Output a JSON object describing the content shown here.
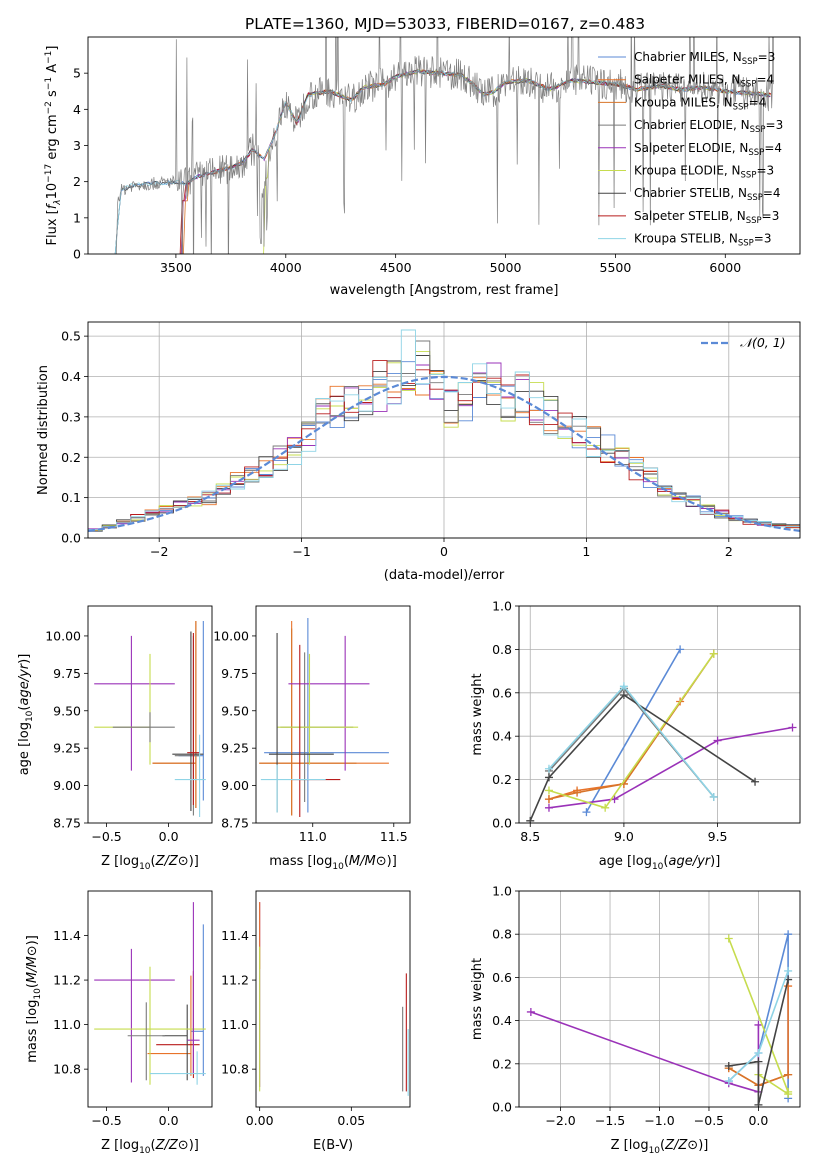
{
  "title": "PLATE=1360, MJD=53033, FIBERID=0167, z=0.483",
  "series_styles": [
    {
      "name": "Chabrier MILES, N$_{SSP}$=3",
      "label_main": "Chabrier MILES, N",
      "label_sub": "SSP",
      "label_end": "=3",
      "color": "#5b8ad6"
    },
    {
      "name": "Salpeter MILES, N$_{SSP}$=4",
      "label_main": "Salpeter MILES, N",
      "label_sub": "SSP",
      "label_end": "=4",
      "color": "#e8732a"
    },
    {
      "name": "Kroupa MILES, N$_{SSP}$=4",
      "label_main": "Kroupa MILES, N",
      "label_sub": "SSP",
      "label_end": "=4",
      "color": "#d8742a"
    },
    {
      "name": "Chabrier ELODIE, N$_{SSP}$=3",
      "label_main": "Chabrier ELODIE, N",
      "label_sub": "SSP",
      "label_end": "=3",
      "color": "#7a7a7a"
    },
    {
      "name": "Salpeter ELODIE, N$_{SSP}$=4",
      "label_main": "Salpeter ELODIE, N",
      "label_sub": "SSP",
      "label_end": "=4",
      "color": "#9a32b8"
    },
    {
      "name": "Kroupa ELODIE, N$_{SSP}$=3",
      "label_main": "Kroupa ELODIE, N",
      "label_sub": "SSP",
      "label_end": "=3",
      "color": "#c6dc4e"
    },
    {
      "name": "Chabrier STELIB, N$_{SSP}$=4",
      "label_main": "Chabrier STELIB, N",
      "label_sub": "SSP",
      "label_end": "=4",
      "color": "#444444"
    },
    {
      "name": "Salpeter STELIB, N$_{SSP}$=3",
      "label_main": "Salpeter STELIB, N",
      "label_sub": "SSP",
      "label_end": "=3",
      "color": "#b81c1c"
    },
    {
      "name": "Kroupa STELIB, N$_{SSP}$=3",
      "label_main": "Kroupa STELIB, N",
      "label_sub": "SSP",
      "label_end": "=3",
      "color": "#8fd4e6"
    }
  ],
  "chart_data": [
    {
      "id": "spectrum",
      "type": "line",
      "xlabel": "wavelength [Angstrom, rest frame]",
      "ylabel": "Flux [f_λ 10^-17 erg cm^-2 s^-1 A^-1]",
      "ylabel_parts": {
        "a": "Flux [",
        "b": "f",
        "c": "λ",
        "d": "10",
        "e": "−17",
        "f": " erg cm",
        "g": "−2",
        "h": " s",
        "i": "−1",
        "j": " A",
        "k": "−1",
        "l": "]"
      },
      "xlim": [
        3100,
        6340
      ],
      "ylim": [
        0,
        6
      ],
      "xticks": [
        3500,
        4000,
        4500,
        5000,
        5500,
        6000
      ],
      "yticks": [
        0,
        1,
        2,
        3,
        4,
        5
      ],
      "grid": false,
      "legend": "upper right",
      "continuum": [
        [
          3230,
          0
        ],
        [
          3235,
          1.5
        ],
        [
          3250,
          1.75
        ],
        [
          3300,
          1.9
        ],
        [
          3400,
          1.95
        ],
        [
          3500,
          2.0
        ],
        [
          3550,
          1.95
        ],
        [
          3600,
          2.15
        ],
        [
          3700,
          2.3
        ],
        [
          3800,
          2.5
        ],
        [
          3850,
          2.9
        ],
        [
          3900,
          2.6
        ],
        [
          3950,
          3.3
        ],
        [
          4000,
          4.2
        ],
        [
          4050,
          3.6
        ],
        [
          4100,
          4.4
        ],
        [
          4200,
          4.5
        ],
        [
          4300,
          4.25
        ],
        [
          4350,
          4.6
        ],
        [
          4450,
          4.7
        ],
        [
          4500,
          4.9
        ],
        [
          4600,
          5.05
        ],
        [
          4700,
          5.0
        ],
        [
          4800,
          4.95
        ],
        [
          4860,
          4.65
        ],
        [
          4900,
          4.4
        ],
        [
          4950,
          4.5
        ],
        [
          5000,
          4.75
        ],
        [
          5100,
          4.8
        ],
        [
          5200,
          4.55
        ],
        [
          5300,
          4.8
        ],
        [
          5400,
          4.75
        ],
        [
          5500,
          4.7
        ],
        [
          5600,
          4.55
        ],
        [
          5700,
          4.65
        ],
        [
          5800,
          4.55
        ],
        [
          5900,
          4.6
        ],
        [
          6000,
          4.5
        ],
        [
          6100,
          4.45
        ],
        [
          6200,
          4.4
        ]
      ]
    },
    {
      "id": "residuals",
      "type": "line",
      "xlabel": "(data-model)/error",
      "ylabel": "Normed distribution",
      "xlim": [
        -2.5,
        2.5
      ],
      "ylim": [
        0,
        0.535
      ],
      "xticks": [
        -2,
        -1,
        0,
        1,
        2
      ],
      "yticks": [
        0.0,
        0.1,
        0.2,
        0.3,
        0.4,
        0.5
      ],
      "grid": true,
      "legend": "upper right",
      "legend_label": "𝒩(0, 1)",
      "gaussian": {
        "mean": 0,
        "sigma": 1
      },
      "bin_width": 0.1,
      "histogram_approx": [
        0.02,
        0.03,
        0.04,
        0.05,
        0.06,
        0.07,
        0.08,
        0.09,
        0.1,
        0.12,
        0.14,
        0.16,
        0.18,
        0.2,
        0.22,
        0.25,
        0.3,
        0.32,
        0.33,
        0.34,
        0.38,
        0.4,
        0.44,
        0.42,
        0.37,
        0.33,
        0.35,
        0.39,
        0.37,
        0.35,
        0.36,
        0.33,
        0.3,
        0.27,
        0.26,
        0.24,
        0.22,
        0.19,
        0.17,
        0.15,
        0.12,
        0.1,
        0.09,
        0.07,
        0.06,
        0.05,
        0.04,
        0.035,
        0.03,
        0.03
      ]
    },
    {
      "id": "age-vs-Z",
      "type": "scatter",
      "xlabel": "Z [log10(Z/Z⊙)]",
      "ylabel": "age  [log10(age/yr)]",
      "xlim": [
        -0.65,
        0.35
      ],
      "ylim": [
        8.75,
        10.2
      ],
      "xticks": [
        -0.5,
        0.0
      ],
      "yticks": [
        8.75,
        9.0,
        9.25,
        9.5,
        9.75,
        10.0
      ],
      "grid": false,
      "points": [
        {
          "x": 0.28,
          "y": 9.2,
          "xerr": [
            0.2,
            0.0
          ],
          "yerr": [
            0.3,
            0.9
          ],
          "series": 0
        },
        {
          "x": 0.22,
          "y": 9.15,
          "xerr": [
            0.35,
            0.0
          ],
          "yerr": [
            0.3,
            0.95
          ],
          "series": 1
        },
        {
          "x": 0.22,
          "y": 9.15,
          "xerr": [
            0.35,
            0.0
          ],
          "yerr": [
            0.3,
            0.95
          ],
          "series": 2
        },
        {
          "x": 0.2,
          "y": 9.2,
          "xerr": [
            0.15,
            0.05
          ],
          "yerr": [
            0.4,
            0.8
          ],
          "series": 3
        },
        {
          "x": -0.3,
          "y": 9.68,
          "xerr": [
            0.3,
            0.35
          ],
          "yerr": [
            0.58,
            0.32
          ],
          "series": 4
        },
        {
          "x": -0.15,
          "y": 9.39,
          "xerr": [
            0.45,
            0.0
          ],
          "yerr": [
            0.25,
            0.49
          ],
          "series": 5
        },
        {
          "x": 0.18,
          "y": 9.21,
          "xerr": [
            0.15,
            0.1
          ],
          "yerr": [
            0.38,
            0.82
          ],
          "series": 6
        },
        {
          "x": 0.2,
          "y": 9.22,
          "xerr": [
            0.05,
            0.05
          ],
          "yerr": [
            0.35,
            0.8
          ],
          "series": 7
        },
        {
          "x": 0.25,
          "y": 9.04,
          "xerr": [
            0.2,
            0.05
          ],
          "yerr": [
            0.25,
            0.3
          ],
          "series": 8
        },
        {
          "x": -0.15,
          "y": 9.39,
          "xerr": [
            0.3,
            0.2
          ],
          "yerr": [
            0.1,
            0.1
          ],
          "series": 3
        }
      ]
    },
    {
      "id": "age-vs-mass",
      "type": "scatter",
      "xlabel": "mass [log10(M/M⊙)]",
      "ylabel": "",
      "xlim": [
        10.65,
        11.6
      ],
      "ylim": [
        8.75,
        10.2
      ],
      "xticks": [
        11.0,
        11.5
      ],
      "yticks": [
        8.75,
        9.0,
        9.25,
        9.5,
        9.75,
        10.0
      ],
      "grid": false,
      "points": [
        {
          "x": 10.97,
          "y": 9.22,
          "xerr": [
            0.27,
            0.5
          ],
          "yerr": [
            0.4,
            0.9
          ],
          "series": 0
        },
        {
          "x": 10.87,
          "y": 9.15,
          "xerr": [
            0.2,
            0.6
          ],
          "yerr": [
            0.35,
            0.95
          ],
          "series": 1
        },
        {
          "x": 10.87,
          "y": 9.15,
          "xerr": [
            0.2,
            0.4
          ],
          "yerr": [
            0.35,
            0.9
          ],
          "series": 2
        },
        {
          "x": 10.95,
          "y": 9.39,
          "xerr": [
            0.15,
            0.3
          ],
          "yerr": [
            0.5,
            0.5
          ],
          "series": 3
        },
        {
          "x": 11.2,
          "y": 9.68,
          "xerr": [
            0.35,
            0.15
          ],
          "yerr": [
            0.58,
            0.32
          ],
          "series": 4
        },
        {
          "x": 10.98,
          "y": 9.39,
          "xerr": [
            0.2,
            0.3
          ],
          "yerr": [
            0.25,
            0.49
          ],
          "series": 5
        },
        {
          "x": 10.78,
          "y": 9.21,
          "xerr": [
            0.05,
            0.35
          ],
          "yerr": [
            0.39,
            0.81
          ],
          "series": 6
        },
        {
          "x": 10.92,
          "y": 9.04,
          "xerr": [
            0.05,
            0.25
          ],
          "yerr": [
            0.25,
            0.9
          ],
          "series": 7
        },
        {
          "x": 10.78,
          "y": 9.04,
          "xerr": [
            0.1,
            0.3
          ],
          "yerr": [
            0.22,
            0.1
          ],
          "series": 8
        }
      ]
    },
    {
      "id": "mass-weight-vs-age",
      "type": "line",
      "xlabel": "age  [log10(age/yr)]",
      "ylabel": "mass weight",
      "xlim": [
        8.44,
        9.94
      ],
      "ylim": [
        0,
        1
      ],
      "xticks": [
        8.5,
        9.0,
        9.5
      ],
      "yticks": [
        0.0,
        0.2,
        0.4,
        0.6,
        0.8,
        1.0
      ],
      "grid": true,
      "series": [
        {
          "series": 0,
          "x": [
            8.8,
            9.3
          ],
          "y": [
            0.05,
            0.8
          ]
        },
        {
          "series": 1,
          "x": [
            8.6,
            8.75,
            9.0,
            9.3
          ],
          "y": [
            0.11,
            0.15,
            0.18,
            0.56
          ]
        },
        {
          "series": 2,
          "x": [
            8.6,
            8.75,
            9.0,
            9.48
          ],
          "y": [
            0.11,
            0.14,
            0.18,
            0.78
          ]
        },
        {
          "series": 3,
          "x": [
            8.6,
            9.0,
            9.48
          ],
          "y": [
            0.24,
            0.62,
            0.12
          ]
        },
        {
          "series": 4,
          "x": [
            8.6,
            8.95,
            9.5,
            9.9
          ],
          "y": [
            0.07,
            0.11,
            0.38,
            0.44
          ]
        },
        {
          "series": 5,
          "x": [
            8.6,
            8.9,
            9.48
          ],
          "y": [
            0.15,
            0.07,
            0.78
          ]
        },
        {
          "series": 6,
          "x": [
            8.5,
            8.6,
            9.0,
            9.7
          ],
          "y": [
            0.01,
            0.21,
            0.59,
            0.19
          ]
        },
        {
          "series": 8,
          "x": [
            8.6,
            9.0,
            9.48
          ],
          "y": [
            0.25,
            0.63,
            0.12
          ]
        }
      ]
    },
    {
      "id": "mass-vs-Z",
      "type": "scatter",
      "xlabel": "Z [log10(Z/Z⊙)]",
      "ylabel": "mass [log10(M/M⊙)]",
      "xlim": [
        -0.65,
        0.35
      ],
      "ylim": [
        10.63,
        11.6
      ],
      "xticks": [
        -0.5,
        0.0
      ],
      "yticks": [
        10.8,
        11.0,
        11.2,
        11.4
      ],
      "grid": false,
      "points": [
        {
          "x": 0.28,
          "y": 10.97,
          "xerr": [
            0.1,
            0.0
          ],
          "yerr": [
            0.2,
            0.48
          ],
          "series": 0
        },
        {
          "x": 0.18,
          "y": 10.87,
          "xerr": [
            0.35,
            0.0
          ],
          "yerr": [
            0.1,
            0.35
          ],
          "series": 1
        },
        {
          "x": 0.2,
          "y": 10.91,
          "xerr": [
            0.3,
            0.05
          ],
          "yerr": [
            0.15,
            0.33
          ],
          "series": 7
        },
        {
          "x": 0.15,
          "y": 10.95,
          "xerr": [
            0.2,
            0.0
          ],
          "yerr": [
            0.2,
            0.14
          ],
          "series": 6
        },
        {
          "x": -0.3,
          "y": 11.2,
          "xerr": [
            0.3,
            0.35
          ],
          "yerr": [
            0.46,
            0.14
          ],
          "series": 4
        },
        {
          "x": -0.15,
          "y": 10.98,
          "xerr": [
            0.45,
            0.45
          ],
          "yerr": [
            0.25,
            0.28
          ],
          "series": 5
        },
        {
          "x": 0.2,
          "y": 10.93,
          "xerr": [
            0.05,
            0.05
          ],
          "yerr": [
            0.15,
            0.62
          ],
          "series": 4
        },
        {
          "x": 0.23,
          "y": 10.78,
          "xerr": [
            0.38,
            0.07
          ],
          "yerr": [
            0.05,
            0.1
          ],
          "series": 8
        },
        {
          "x": -0.18,
          "y": 10.95,
          "xerr": [
            0.15,
            0.15
          ],
          "yerr": [
            0.2,
            0.15
          ],
          "series": 3
        }
      ]
    },
    {
      "id": "mass-vs-EBV",
      "type": "scatter",
      "xlabel": "E(B-V)",
      "ylabel": "",
      "xlim": [
        -0.002,
        0.082
      ],
      "ylim": [
        10.63,
        11.6
      ],
      "xticks": [
        0.0,
        0.05
      ],
      "yticks": [
        10.8,
        11.0,
        11.2,
        11.4
      ],
      "grid": false,
      "points": [
        {
          "x": 0.0,
          "y": 11.2,
          "yerr": [
            0.48,
            0.35
          ],
          "series": 4
        },
        {
          "x": 0.0,
          "y": 11.3,
          "yerr": [
            0.05,
            0.25
          ],
          "series": 1
        },
        {
          "x": 0.0,
          "y": 11.0,
          "yerr": [
            0.3,
            0.35
          ],
          "series": 5
        },
        {
          "x": 0.078,
          "y": 10.9,
          "yerr": [
            0.2,
            0.18
          ],
          "series": 3
        },
        {
          "x": 0.08,
          "y": 11.0,
          "yerr": [
            0.3,
            0.23
          ],
          "series": 7
        },
        {
          "x": 0.081,
          "y": 10.85,
          "yerr": [
            0.17,
            0.13
          ],
          "series": 8
        }
      ]
    },
    {
      "id": "mass-weight-vs-Z",
      "type": "line",
      "xlabel": "Z [log10(Z/Z⊙)]",
      "ylabel": "mass weight",
      "xlim": [
        -2.42,
        0.42
      ],
      "ylim": [
        0,
        1
      ],
      "xticks": [
        -2.0,
        -1.5,
        -1.0,
        -0.5,
        0.0
      ],
      "yticks": [
        0.0,
        0.2,
        0.4,
        0.6,
        0.8,
        1.0
      ],
      "grid": true,
      "series": [
        {
          "series": 0,
          "x": [
            -0.3,
            0.0,
            0.3,
            0.3
          ],
          "y": [
            0.12,
            0.25,
            0.8,
            0.04
          ]
        },
        {
          "series": 1,
          "x": [
            -0.3,
            0.0,
            0.3,
            0.3
          ],
          "y": [
            0.18,
            0.1,
            0.15,
            0.56
          ]
        },
        {
          "series": 2,
          "x": [
            -0.3,
            0.0,
            0.3
          ],
          "y": [
            0.18,
            0.1,
            0.15
          ]
        },
        {
          "series": 4,
          "x": [
            -2.3,
            -0.3,
            0.0,
            0.0
          ],
          "y": [
            0.44,
            0.11,
            0.07,
            0.38
          ]
        },
        {
          "series": 5,
          "x": [
            -0.3,
            0.3,
            0.3,
            0.0
          ],
          "y": [
            0.78,
            0.07,
            0.06,
            0.15
          ]
        },
        {
          "series": 6,
          "x": [
            -0.3,
            0.0,
            0.0,
            0.3
          ],
          "y": [
            0.19,
            0.21,
            0.01,
            0.59
          ]
        },
        {
          "series": 8,
          "x": [
            -0.3,
            0.0,
            0.3
          ],
          "y": [
            0.12,
            0.25,
            0.63
          ]
        }
      ]
    }
  ]
}
